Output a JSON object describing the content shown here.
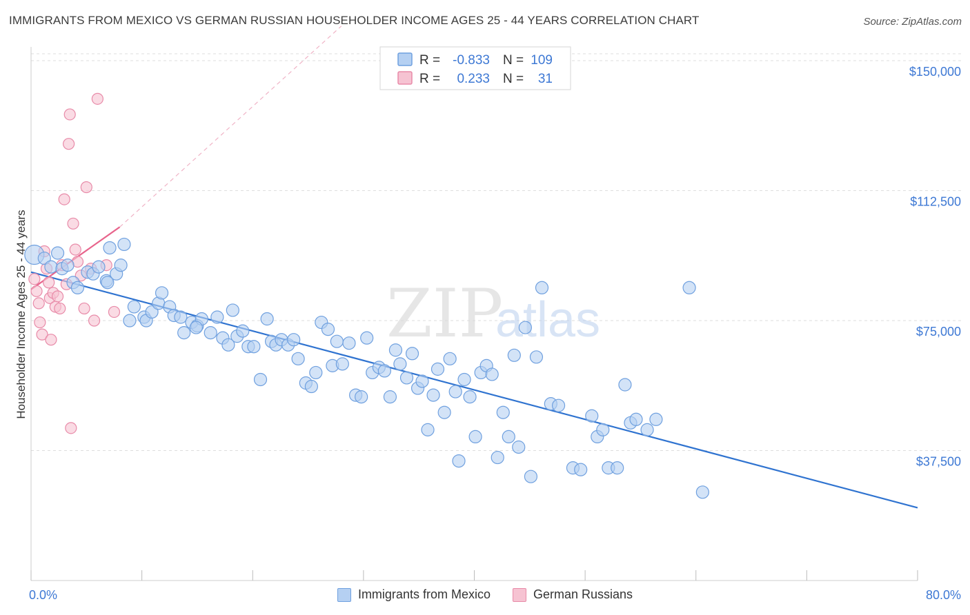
{
  "title": "IMMIGRANTS FROM MEXICO VS GERMAN RUSSIAN HOUSEHOLDER INCOME AGES 25 - 44 YEARS CORRELATION CHART",
  "source": "Source: ZipAtlas.com",
  "watermark": {
    "zip": "ZIP",
    "atlas": "atlas"
  },
  "colors": {
    "blue_fill": "#b5d0f2",
    "blue_stroke": "#6fa0df",
    "blue_line": "#2f73d0",
    "pink_fill": "#f6c3d2",
    "pink_stroke": "#e88aa8",
    "pink_line": "#e8648c",
    "axis_text": "#3d78d4",
    "grid": "#dddddd"
  },
  "legend": {
    "rows": [
      {
        "series": "Immigrants from Mexico",
        "r_label": "R =",
        "r_value": "-0.833",
        "n_label": "N =",
        "n_value": "109"
      },
      {
        "series": "German Russians",
        "r_label": "R =",
        "r_value": "0.233",
        "n_label": "N =",
        "n_value": "31"
      }
    ]
  },
  "chart_data": {
    "type": "scatter",
    "title": "IMMIGRANTS FROM MEXICO VS GERMAN RUSSIAN HOUSEHOLDER INCOME AGES 25 - 44 YEARS CORRELATION CHART",
    "xlabel": "",
    "ylabel": "Householder Income Ages 25 - 44 years",
    "xlim": [
      0,
      80
    ],
    "ylim": [
      0,
      152000
    ],
    "x_tick_labels": [
      "0.0%",
      "80.0%"
    ],
    "y_ticks": [
      37500,
      75000,
      112500,
      150000
    ],
    "y_tick_labels": [
      "$37,500",
      "$75,000",
      "$112,500",
      "$150,000"
    ],
    "series": [
      {
        "name": "Immigrants from Mexico",
        "color": "#6fa0df",
        "trend": {
          "x": [
            0,
            80
          ],
          "y": [
            89000,
            21000
          ],
          "style": "solid"
        },
        "points": [
          [
            0.3,
            94000
          ],
          [
            1.2,
            93000
          ],
          [
            1.8,
            90500
          ],
          [
            2.4,
            94500
          ],
          [
            2.8,
            90000
          ],
          [
            3.3,
            91000
          ],
          [
            3.8,
            86000
          ],
          [
            4.2,
            84500
          ],
          [
            5.1,
            89000
          ],
          [
            5.6,
            88500
          ],
          [
            6.8,
            86500
          ],
          [
            6.9,
            86000
          ],
          [
            7.7,
            88500
          ],
          [
            8.1,
            91000
          ],
          [
            8.4,
            97000
          ],
          [
            8.9,
            75000
          ],
          [
            9.3,
            79000
          ],
          [
            10.2,
            76000
          ],
          [
            10.4,
            75000
          ],
          [
            10.9,
            77500
          ],
          [
            11.5,
            80000
          ],
          [
            11.8,
            83000
          ],
          [
            12.5,
            79000
          ],
          [
            12.9,
            76500
          ],
          [
            13.5,
            76000
          ],
          [
            13.8,
            71500
          ],
          [
            14.5,
            74500
          ],
          [
            15.0,
            73500
          ],
          [
            15.4,
            75500
          ],
          [
            16.2,
            71500
          ],
          [
            16.8,
            76000
          ],
          [
            17.3,
            70000
          ],
          [
            17.8,
            68000
          ],
          [
            18.2,
            78000
          ],
          [
            18.6,
            70500
          ],
          [
            19.1,
            72000
          ],
          [
            19.6,
            67500
          ],
          [
            20.1,
            67500
          ],
          [
            20.7,
            58000
          ],
          [
            21.3,
            75500
          ],
          [
            21.7,
            69000
          ],
          [
            22.1,
            68000
          ],
          [
            22.6,
            69500
          ],
          [
            23.2,
            68000
          ],
          [
            23.7,
            69500
          ],
          [
            24.1,
            64000
          ],
          [
            24.8,
            57000
          ],
          [
            25.3,
            56000
          ],
          [
            25.7,
            60000
          ],
          [
            26.2,
            74500
          ],
          [
            26.8,
            72500
          ],
          [
            27.2,
            62000
          ],
          [
            27.6,
            69000
          ],
          [
            28.1,
            62500
          ],
          [
            28.7,
            68500
          ],
          [
            29.3,
            53500
          ],
          [
            29.8,
            53000
          ],
          [
            30.3,
            70000
          ],
          [
            30.8,
            60000
          ],
          [
            31.4,
            61500
          ],
          [
            31.9,
            60500
          ],
          [
            32.4,
            53000
          ],
          [
            32.9,
            66500
          ],
          [
            33.3,
            62500
          ],
          [
            33.9,
            58500
          ],
          [
            34.4,
            65500
          ],
          [
            34.9,
            55500
          ],
          [
            35.3,
            57500
          ],
          [
            35.8,
            43500
          ],
          [
            36.3,
            53500
          ],
          [
            36.7,
            61000
          ],
          [
            37.3,
            48500
          ],
          [
            37.8,
            64000
          ],
          [
            38.3,
            54500
          ],
          [
            38.6,
            34500
          ],
          [
            39.1,
            58000
          ],
          [
            39.6,
            53000
          ],
          [
            40.1,
            41500
          ],
          [
            40.6,
            60000
          ],
          [
            41.1,
            62000
          ],
          [
            41.6,
            59500
          ],
          [
            42.1,
            35500
          ],
          [
            42.6,
            48500
          ],
          [
            43.1,
            41500
          ],
          [
            43.6,
            65000
          ],
          [
            44.0,
            38500
          ],
          [
            44.6,
            73000
          ],
          [
            45.1,
            30000
          ],
          [
            45.6,
            64500
          ],
          [
            46.1,
            84500
          ],
          [
            46.9,
            51000
          ],
          [
            47.6,
            50500
          ],
          [
            48.9,
            32500
          ],
          [
            49.6,
            32000
          ],
          [
            50.6,
            47500
          ],
          [
            51.1,
            41500
          ],
          [
            51.6,
            43500
          ],
          [
            52.1,
            32500
          ],
          [
            52.9,
            32500
          ],
          [
            53.6,
            56500
          ],
          [
            54.1,
            45500
          ],
          [
            54.6,
            46500
          ],
          [
            55.6,
            43500
          ],
          [
            56.4,
            46500
          ],
          [
            59.4,
            84500
          ],
          [
            60.6,
            25500
          ],
          [
            14.9,
            73000
          ],
          [
            7.1,
            96000
          ],
          [
            6.1,
            90500
          ]
        ]
      },
      {
        "name": "German Russians",
        "color": "#e88aa8",
        "trend": {
          "x": [
            0,
            8
          ],
          "y": [
            84000,
            102000
          ],
          "style": "solid"
        },
        "trend_extended": {
          "x": [
            8,
            28
          ],
          "y": [
            102000,
            160000
          ],
          "style": "dashed"
        },
        "points": [
          [
            0.3,
            87000
          ],
          [
            0.5,
            83500
          ],
          [
            0.7,
            80000
          ],
          [
            0.8,
            74500
          ],
          [
            1.0,
            71000
          ],
          [
            1.2,
            95000
          ],
          [
            1.4,
            90000
          ],
          [
            1.6,
            86000
          ],
          [
            1.7,
            81500
          ],
          [
            1.8,
            69500
          ],
          [
            2.0,
            83000
          ],
          [
            2.2,
            79000
          ],
          [
            2.4,
            82000
          ],
          [
            2.6,
            78500
          ],
          [
            2.8,
            91000
          ],
          [
            3.0,
            110000
          ],
          [
            3.2,
            85500
          ],
          [
            3.4,
            126000
          ],
          [
            3.5,
            134500
          ],
          [
            3.6,
            44000
          ],
          [
            3.8,
            103000
          ],
          [
            4.0,
            95500
          ],
          [
            4.2,
            92000
          ],
          [
            4.5,
            88000
          ],
          [
            4.8,
            78500
          ],
          [
            5.0,
            113500
          ],
          [
            5.4,
            90000
          ],
          [
            5.7,
            75000
          ],
          [
            6.0,
            139000
          ],
          [
            6.8,
            91000
          ],
          [
            7.5,
            77500
          ]
        ]
      }
    ]
  },
  "footer_legend": [
    "Immigrants from Mexico",
    "German Russians"
  ]
}
